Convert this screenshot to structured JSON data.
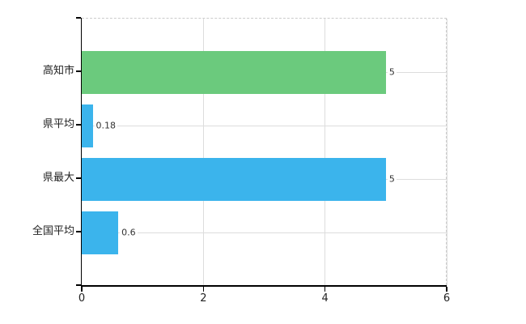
{
  "chart_data": {
    "type": "bar",
    "orientation": "horizontal",
    "title": "",
    "xlabel": "",
    "ylabel": "",
    "categories": [
      "高知市",
      "県平均",
      "県最大",
      "全国平均"
    ],
    "values": [
      5,
      0.18,
      5,
      0.6
    ],
    "value_labels": [
      "5",
      "0.18",
      "5",
      "0.6"
    ],
    "bar_colors": [
      "#6bca7d",
      "#3bb4ec",
      "#3bb4ec",
      "#3bb4ec"
    ],
    "xlim": [
      0,
      6
    ],
    "x_tick_labels": [
      "0",
      "2",
      "4",
      "6"
    ],
    "x_tick_values": [
      0,
      2,
      4,
      6
    ],
    "x_gridline_values": [
      2,
      4,
      6
    ],
    "grid": true,
    "legend": false,
    "colors": {
      "background": "#ffffff",
      "axis": "#000000",
      "grid": "#dddddd",
      "frame_dash": "#cccccc",
      "tick_label": "#222222",
      "value_label": "#333333"
    }
  }
}
